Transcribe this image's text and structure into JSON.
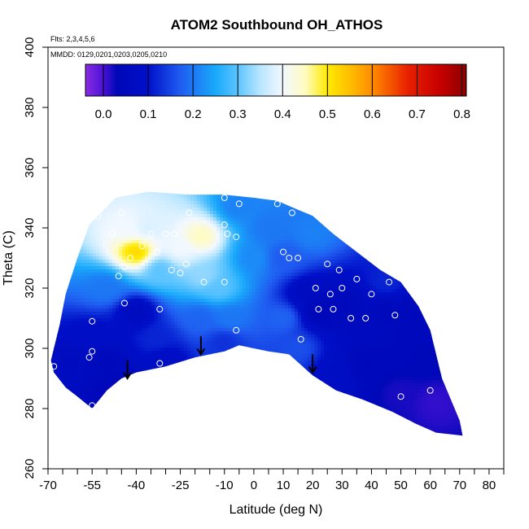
{
  "chart_data": {
    "type": "heatmap",
    "title": "ATOM2 Southbound OH_ATHOS",
    "subtitle": "Flts: 2,3,4,5,6",
    "annotation": "MMDD: 0129,0201,0203,0205,0210",
    "xlabel": "Latitude (deg N)",
    "ylabel": "Theta (C)",
    "xlim": [
      -70,
      85
    ],
    "ylim": [
      260,
      400
    ],
    "x_tick_labels": [
      "-70",
      "-55",
      "-40",
      "-25",
      "-10",
      "0",
      "10",
      "20",
      "30",
      "40",
      "50",
      "60",
      "70",
      "80"
    ],
    "x_tick_values": [
      -70,
      -55,
      -40,
      -25,
      -10,
      0,
      10,
      20,
      30,
      40,
      50,
      60,
      70,
      80
    ],
    "x_minor_ticks": [
      -65,
      -60,
      -50,
      -45,
      -35,
      -30,
      -20,
      -15,
      -5,
      5,
      15,
      25,
      35,
      45,
      55,
      65,
      75,
      85
    ],
    "y_ticks": [
      260,
      280,
      300,
      320,
      340,
      360,
      380,
      400
    ],
    "colorbar": {
      "ticks": [
        0.0,
        0.1,
        0.2,
        0.3,
        0.4,
        0.5,
        0.6,
        0.7,
        0.8
      ],
      "tick_labels": [
        "0.0",
        "0.1",
        "0.2",
        "0.3",
        "0.4",
        "0.5",
        "0.6",
        "0.7",
        "0.8"
      ],
      "range": [
        -0.04,
        0.81
      ],
      "stops": [
        {
          "v": -0.04,
          "color": "#8a2be2"
        },
        {
          "v": 0.0,
          "color": "#4b12d6"
        },
        {
          "v": 0.03,
          "color": "#0008b8"
        },
        {
          "v": 0.1,
          "color": "#0010c8"
        },
        {
          "v": 0.17,
          "color": "#1f5af0"
        },
        {
          "v": 0.25,
          "color": "#19a9fb"
        },
        {
          "v": 0.3,
          "color": "#5cc4ff"
        },
        {
          "v": 0.35,
          "color": "#b9e6ff"
        },
        {
          "v": 0.4,
          "color": "#f2f8ff"
        },
        {
          "v": 0.45,
          "color": "#fffbc2"
        },
        {
          "v": 0.5,
          "color": "#ffea00"
        },
        {
          "v": 0.55,
          "color": "#ffbe00"
        },
        {
          "v": 0.6,
          "color": "#ff8c00"
        },
        {
          "v": 0.68,
          "color": "#e82000"
        },
        {
          "v": 0.75,
          "color": "#c80000"
        },
        {
          "v": 0.81,
          "color": "#8a0000"
        }
      ]
    },
    "coverage_outline": [
      [
        -68,
        292
      ],
      [
        -64,
        287
      ],
      [
        -60,
        284
      ],
      [
        -55,
        280
      ],
      [
        -50,
        286
      ],
      [
        -45,
        290
      ],
      [
        -40,
        292
      ],
      [
        -30,
        294
      ],
      [
        -20,
        297
      ],
      [
        -10,
        299
      ],
      [
        -5,
        301
      ],
      [
        0,
        300
      ],
      [
        5,
        299
      ],
      [
        12,
        298
      ],
      [
        20,
        291
      ],
      [
        28,
        286
      ],
      [
        37,
        283
      ],
      [
        47,
        279
      ],
      [
        55,
        275
      ],
      [
        62,
        272
      ],
      [
        71,
        271
      ],
      [
        70,
        276
      ],
      [
        64,
        290
      ],
      [
        60,
        306
      ],
      [
        56,
        314
      ],
      [
        50,
        322
      ],
      [
        43,
        326
      ],
      [
        35,
        332
      ],
      [
        27,
        338
      ],
      [
        20,
        344
      ],
      [
        15,
        346
      ],
      [
        8,
        349
      ],
      [
        0,
        350
      ],
      [
        -10,
        351
      ],
      [
        -22,
        351
      ],
      [
        -36,
        352
      ],
      [
        -47,
        350
      ],
      [
        -52,
        345
      ],
      [
        -56,
        341
      ],
      [
        -60,
        330
      ],
      [
        -64,
        318
      ],
      [
        -66,
        308
      ],
      [
        -69,
        296
      ]
    ],
    "field_points": [
      {
        "x": -50,
        "y": 320,
        "v": 0.2
      },
      {
        "x": -43,
        "y": 340,
        "v": 0.4
      },
      {
        "x": -40,
        "y": 332,
        "v": 0.52
      },
      {
        "x": -36,
        "y": 340,
        "v": 0.38
      },
      {
        "x": -32,
        "y": 326,
        "v": 0.3
      },
      {
        "x": -25,
        "y": 333,
        "v": 0.4
      },
      {
        "x": -18,
        "y": 337,
        "v": 0.45
      },
      {
        "x": -17,
        "y": 324,
        "v": 0.33
      },
      {
        "x": -12,
        "y": 320,
        "v": 0.3
      },
      {
        "x": -40,
        "y": 312,
        "v": 0.06
      },
      {
        "x": -33,
        "y": 303,
        "v": 0.12
      },
      {
        "x": -18,
        "y": 310,
        "v": 0.18
      },
      {
        "x": -8,
        "y": 310,
        "v": 0.2
      },
      {
        "x": -55,
        "y": 304,
        "v": 0.09
      },
      {
        "x": -62,
        "y": 296,
        "v": 0.06
      },
      {
        "x": -50,
        "y": 296,
        "v": 0.05
      },
      {
        "x": -45,
        "y": 285,
        "v": 0.02
      },
      {
        "x": -30,
        "y": 296,
        "v": 0.08
      },
      {
        "x": -10,
        "y": 302,
        "v": 0.13
      },
      {
        "x": 0,
        "y": 330,
        "v": 0.22
      },
      {
        "x": 5,
        "y": 340,
        "v": 0.2
      },
      {
        "x": 10,
        "y": 330,
        "v": 0.17
      },
      {
        "x": 10,
        "y": 310,
        "v": 0.18
      },
      {
        "x": 18,
        "y": 318,
        "v": 0.06
      },
      {
        "x": 22,
        "y": 312,
        "v": 0.03
      },
      {
        "x": 30,
        "y": 315,
        "v": 0.05
      },
      {
        "x": 35,
        "y": 305,
        "v": 0.06
      },
      {
        "x": 45,
        "y": 312,
        "v": 0.05
      },
      {
        "x": 45,
        "y": 322,
        "v": 0.12
      },
      {
        "x": 55,
        "y": 312,
        "v": 0.04
      },
      {
        "x": 38,
        "y": 295,
        "v": 0.04
      },
      {
        "x": 50,
        "y": 285,
        "v": 0.02
      },
      {
        "x": 62,
        "y": 282,
        "v": 0.01
      },
      {
        "x": 58,
        "y": 298,
        "v": 0.04
      },
      {
        "x": 28,
        "y": 292,
        "v": 0.08
      },
      {
        "x": 15,
        "y": 300,
        "v": 0.16
      },
      {
        "x": 20,
        "y": 338,
        "v": 0.21
      },
      {
        "x": -5,
        "y": 347,
        "v": 0.21
      }
    ],
    "observations": [
      {
        "x": -68,
        "y": 294
      },
      {
        "x": -55,
        "y": 281
      },
      {
        "x": -56,
        "y": 297
      },
      {
        "x": -55,
        "y": 299
      },
      {
        "x": -55,
        "y": 309
      },
      {
        "x": -53,
        "y": 344
      },
      {
        "x": -48,
        "y": 338
      },
      {
        "x": -50,
        "y": 350
      },
      {
        "x": -46,
        "y": 324
      },
      {
        "x": -45,
        "y": 345
      },
      {
        "x": -44,
        "y": 327
      },
      {
        "x": -44,
        "y": 315
      },
      {
        "x": -42,
        "y": 330
      },
      {
        "x": -38,
        "y": 334
      },
      {
        "x": -35,
        "y": 338
      },
      {
        "x": -33,
        "y": 332
      },
      {
        "x": -32,
        "y": 313
      },
      {
        "x": -32,
        "y": 295
      },
      {
        "x": -30,
        "y": 338
      },
      {
        "x": -28,
        "y": 326
      },
      {
        "x": -27,
        "y": 338
      },
      {
        "x": -25,
        "y": 325
      },
      {
        "x": -23,
        "y": 328
      },
      {
        "x": -22,
        "y": 345
      },
      {
        "x": -17,
        "y": 322
      },
      {
        "x": -10,
        "y": 350
      },
      {
        "x": -10,
        "y": 341
      },
      {
        "x": -10,
        "y": 322
      },
      {
        "x": -9,
        "y": 338
      },
      {
        "x": -6,
        "y": 337
      },
      {
        "x": -6,
        "y": 306
      },
      {
        "x": -5,
        "y": 348
      },
      {
        "x": 8,
        "y": 348
      },
      {
        "x": 10,
        "y": 332
      },
      {
        "x": 12,
        "y": 330
      },
      {
        "x": 13,
        "y": 345
      },
      {
        "x": 15,
        "y": 330
      },
      {
        "x": 16,
        "y": 303
      },
      {
        "x": 21,
        "y": 320
      },
      {
        "x": 22,
        "y": 313
      },
      {
        "x": 23,
        "y": 345
      },
      {
        "x": 25,
        "y": 328
      },
      {
        "x": 26,
        "y": 318
      },
      {
        "x": 27,
        "y": 313
      },
      {
        "x": 29,
        "y": 326
      },
      {
        "x": 30,
        "y": 320
      },
      {
        "x": 33,
        "y": 310
      },
      {
        "x": 35,
        "y": 323
      },
      {
        "x": 38,
        "y": 310
      },
      {
        "x": 40,
        "y": 318
      },
      {
        "x": 46,
        "y": 322
      },
      {
        "x": 48,
        "y": 311
      },
      {
        "x": 50,
        "y": 284
      },
      {
        "x": 60,
        "y": 286
      }
    ],
    "tropopause_arrows": [
      {
        "x": -43,
        "y_from": 296,
        "y_to": 290
      },
      {
        "x": -18,
        "y_from": 304,
        "y_to": 298
      },
      {
        "x": 20,
        "y_from": 298,
        "y_to": 292
      }
    ]
  }
}
